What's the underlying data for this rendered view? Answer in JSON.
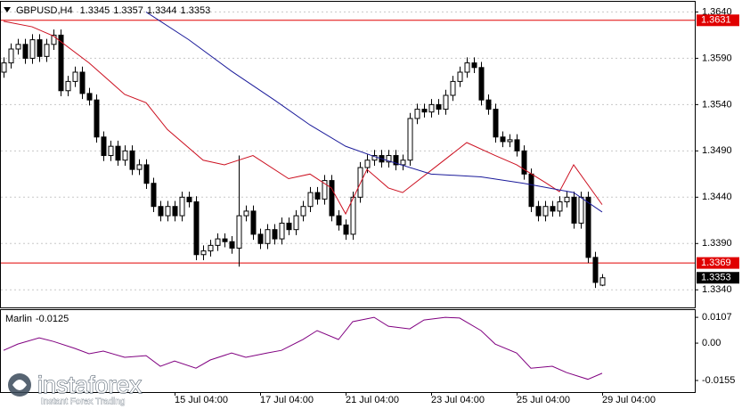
{
  "chart_data": [
    {
      "type": "candlestick",
      "title": "GBPUSD,H4",
      "categories": [
        null,
        null,
        null,
        null,
        null,
        null,
        null,
        null,
        null,
        null,
        null,
        null,
        null,
        null,
        null,
        null,
        null,
        null,
        null,
        null,
        null,
        null,
        null,
        null,
        "15 Jul 04:00",
        null,
        null,
        null,
        null,
        null,
        null,
        null,
        null,
        null,
        null,
        null,
        "17 Jul 04:00",
        null,
        null,
        null,
        null,
        null,
        null,
        null,
        null,
        null,
        null,
        null,
        "21 Jul 04:00",
        null,
        null,
        null,
        null,
        null,
        null,
        null,
        null,
        null,
        null,
        null,
        "23 Jul 04:00",
        null,
        null,
        null,
        null,
        null,
        null,
        null,
        null,
        null,
        null,
        null,
        "25 Jul 04:00",
        null,
        null,
        null,
        null,
        null,
        null,
        null,
        null,
        null,
        null,
        null,
        "29 Jul 04:00"
      ],
      "ohlc": [
        [
          1.3575,
          1.3591,
          1.3569,
          1.3585
        ],
        [
          1.3585,
          1.3606,
          1.3579,
          1.36
        ],
        [
          1.36,
          1.3611,
          1.3594,
          1.3605
        ],
        [
          1.3605,
          1.3611,
          1.3584,
          1.359
        ],
        [
          1.359,
          1.3616,
          1.3584,
          1.361
        ],
        [
          1.361,
          1.3616,
          1.3586,
          1.3592
        ],
        [
          1.3592,
          1.3611,
          1.3586,
          1.3605
        ],
        [
          1.3605,
          1.3621,
          1.3599,
          1.3615
        ],
        [
          1.3615,
          1.3621,
          1.3549,
          1.3555
        ],
        [
          1.3555,
          1.3571,
          1.3549,
          1.3565
        ],
        [
          1.3565,
          1.3581,
          1.3559,
          1.3575
        ],
        [
          1.3575,
          1.3581,
          1.3546,
          1.3552
        ],
        [
          1.3552,
          1.3558,
          1.3539,
          1.3545
        ],
        [
          1.3545,
          1.3551,
          1.3499,
          1.3505
        ],
        [
          1.3505,
          1.3511,
          1.3479,
          1.3485
        ],
        [
          1.3485,
          1.3501,
          1.3479,
          1.3495
        ],
        [
          1.3495,
          1.3501,
          1.3474,
          1.348
        ],
        [
          1.348,
          1.3496,
          1.3474,
          1.349
        ],
        [
          1.349,
          1.3496,
          1.3464,
          1.347
        ],
        [
          1.347,
          1.3481,
          1.3464,
          1.3475
        ],
        [
          1.3475,
          1.3481,
          1.3449,
          1.3455
        ],
        [
          1.3455,
          1.3461,
          1.3424,
          1.343
        ],
        [
          1.343,
          1.3436,
          1.3414,
          1.342
        ],
        [
          1.342,
          1.3436,
          1.3414,
          1.343
        ],
        [
          1.343,
          1.3436,
          1.3414,
          1.342
        ],
        [
          1.342,
          1.3446,
          1.3414,
          1.344
        ],
        [
          1.344,
          1.3446,
          1.3429,
          1.3435
        ],
        [
          1.3435,
          1.3441,
          1.3372,
          1.3378
        ],
        [
          1.3378,
          1.3388,
          1.3372,
          1.3382
        ],
        [
          1.3382,
          1.3394,
          1.3376,
          1.3388
        ],
        [
          1.3388,
          1.3401,
          1.3382,
          1.3395
        ],
        [
          1.3395,
          1.3401,
          1.3386,
          1.3392
        ],
        [
          1.3392,
          1.3398,
          1.3379,
          1.3385
        ],
        [
          1.3385,
          1.3485,
          1.3365,
          1.342
        ],
        [
          1.342,
          1.3431,
          1.3414,
          1.3425
        ],
        [
          1.3425,
          1.3431,
          1.3394,
          1.34
        ],
        [
          1.34,
          1.3406,
          1.3384,
          1.339
        ],
        [
          1.339,
          1.3411,
          1.3384,
          1.3405
        ],
        [
          1.3405,
          1.3411,
          1.3389,
          1.3395
        ],
        [
          1.3395,
          1.3418,
          1.3389,
          1.3412
        ],
        [
          1.3412,
          1.3418,
          1.3399,
          1.3405
        ],
        [
          1.3405,
          1.3426,
          1.3399,
          1.342
        ],
        [
          1.342,
          1.3436,
          1.3414,
          1.343
        ],
        [
          1.343,
          1.3451,
          1.3424,
          1.3445
        ],
        [
          1.3445,
          1.3451,
          1.3432,
          1.3438
        ],
        [
          1.3438,
          1.3464,
          1.3432,
          1.3458
        ],
        [
          1.3458,
          1.3464,
          1.3414,
          1.342
        ],
        [
          1.342,
          1.3426,
          1.3404,
          1.341
        ],
        [
          1.341,
          1.3416,
          1.3394,
          1.34
        ],
        [
          1.34,
          1.3446,
          1.3394,
          1.344
        ],
        [
          1.344,
          1.3478,
          1.3434,
          1.3472
        ],
        [
          1.3472,
          1.3486,
          1.3466,
          1.348
        ],
        [
          1.348,
          1.3491,
          1.3474,
          1.3485
        ],
        [
          1.3485,
          1.3491,
          1.3472,
          1.3478
        ],
        [
          1.3478,
          1.3491,
          1.3472,
          1.3485
        ],
        [
          1.3485,
          1.3491,
          1.3469,
          1.3475
        ],
        [
          1.3475,
          1.3486,
          1.3469,
          1.348
        ],
        [
          1.348,
          1.3531,
          1.3474,
          1.3525
        ],
        [
          1.3525,
          1.3541,
          1.3519,
          1.3535
        ],
        [
          1.3535,
          1.3541,
          1.3526,
          1.3532
        ],
        [
          1.3532,
          1.3546,
          1.3526,
          1.354
        ],
        [
          1.354,
          1.3546,
          1.3529,
          1.3535
        ],
        [
          1.3535,
          1.3556,
          1.3529,
          1.355
        ],
        [
          1.355,
          1.3571,
          1.3544,
          1.3565
        ],
        [
          1.3565,
          1.3581,
          1.3559,
          1.3575
        ],
        [
          1.3575,
          1.3591,
          1.3569,
          1.3585
        ],
        [
          1.3585,
          1.3591,
          1.3574,
          1.358
        ],
        [
          1.358,
          1.3586,
          1.3539,
          1.3545
        ],
        [
          1.3545,
          1.3551,
          1.3529,
          1.3535
        ],
        [
          1.3535,
          1.3541,
          1.3499,
          1.3505
        ],
        [
          1.3505,
          1.3511,
          1.3494,
          1.35
        ],
        [
          1.35,
          1.3508,
          1.3494,
          1.3502
        ],
        [
          1.3502,
          1.3508,
          1.3484,
          1.349
        ],
        [
          1.349,
          1.3496,
          1.3459,
          1.3465
        ],
        [
          1.3465,
          1.3471,
          1.3424,
          1.343
        ],
        [
          1.343,
          1.3436,
          1.3414,
          1.342
        ],
        [
          1.342,
          1.3436,
          1.3414,
          1.343
        ],
        [
          1.343,
          1.3436,
          1.3419,
          1.3425
        ],
        [
          1.3425,
          1.3441,
          1.3419,
          1.3435
        ],
        [
          1.3435,
          1.3446,
          1.3429,
          1.344
        ],
        [
          1.344,
          1.3446,
          1.3406,
          1.3412
        ],
        [
          1.3412,
          1.3446,
          1.3406,
          1.344
        ],
        [
          1.344,
          1.3446,
          1.3369,
          1.3375
        ],
        [
          1.3375,
          1.3381,
          1.3342,
          1.3348
        ],
        [
          1.3345,
          1.3357,
          1.3344,
          1.3353
        ]
      ],
      "up_color": "#ffffff",
      "down_color": "#000000",
      "ylim": [
        1.3321,
        1.3651
      ],
      "yticks": [
        {
          "value": 1.364,
          "label": "1.3640"
        },
        {
          "value": 1.359,
          "label": "1.3590"
        },
        {
          "value": 1.354,
          "label": "1.3540"
        },
        {
          "value": 1.349,
          "label": "1.3490"
        },
        {
          "value": 1.344,
          "label": "1.3440"
        },
        {
          "value": 1.339,
          "label": "1.3390"
        },
        {
          "value": 1.334,
          "label": "1.3340"
        }
      ],
      "hlines": [
        {
          "value": 1.3631,
          "color": "#e00000"
        },
        {
          "value": 1.3369,
          "color": "#e00000"
        }
      ],
      "lines": [
        {
          "color": "#cc1020",
          "x": [
            0,
            4,
            7,
            12,
            17,
            20,
            23,
            28,
            31,
            35,
            40,
            43,
            46,
            48,
            51,
            54,
            56,
            61,
            65,
            69,
            72,
            76,
            78,
            80,
            84
          ],
          "values": [
            1.363,
            1.3624,
            1.3614,
            1.3585,
            1.3551,
            1.3542,
            1.3513,
            1.348,
            1.3475,
            1.3485,
            1.346,
            1.3465,
            1.345,
            1.3422,
            1.347,
            1.345,
            1.3445,
            1.3475,
            1.3499,
            1.3485,
            1.3475,
            1.3456,
            1.3446,
            1.3475,
            1.3432
          ]
        },
        {
          "color": "#1a1a9a",
          "x": [
            20,
            26,
            32,
            38,
            43,
            48,
            52,
            60,
            67,
            73,
            80,
            84
          ],
          "values": [
            1.364,
            1.361,
            1.3576,
            1.3545,
            1.3518,
            1.3495,
            1.3484,
            1.3465,
            1.3462,
            1.3455,
            1.3445,
            1.3424
          ]
        }
      ],
      "grid": true
    },
    {
      "type": "line",
      "title": "Marlin",
      "color": "#800080",
      "x": [
        0,
        2,
        5,
        7,
        10,
        12,
        14,
        17,
        20,
        22,
        24,
        27,
        29,
        32,
        34,
        37,
        39,
        42,
        44,
        47,
        49,
        52,
        54,
        57,
        59,
        62,
        64,
        67,
        69,
        72,
        74,
        77,
        79,
        82,
        84
      ],
      "values": [
        -0.003,
        -0.0004,
        0.0022,
        0.0007,
        -0.0022,
        -0.0044,
        -0.0033,
        -0.0059,
        -0.0052,
        -0.0096,
        -0.0074,
        -0.0104,
        -0.007,
        -0.0041,
        -0.0059,
        -0.0041,
        -0.003,
        0.0015,
        0.0052,
        0.0015,
        0.0089,
        0.0107,
        0.007,
        0.0059,
        0.0096,
        0.0107,
        0.0104,
        0.0052,
        -0.0004,
        -0.0041,
        -0.0104,
        -0.0096,
        -0.0122,
        -0.015,
        -0.0125
      ],
      "ylim": [
        -0.0203,
        0.0137
      ],
      "yticks": [
        0.0107,
        {
          "value": 0,
          "label": "0.00"
        },
        -0.0155
      ]
    }
  ],
  "watermark": {
    "brand": "instaforex",
    "tagline": "Instant Forex Trading"
  }
}
